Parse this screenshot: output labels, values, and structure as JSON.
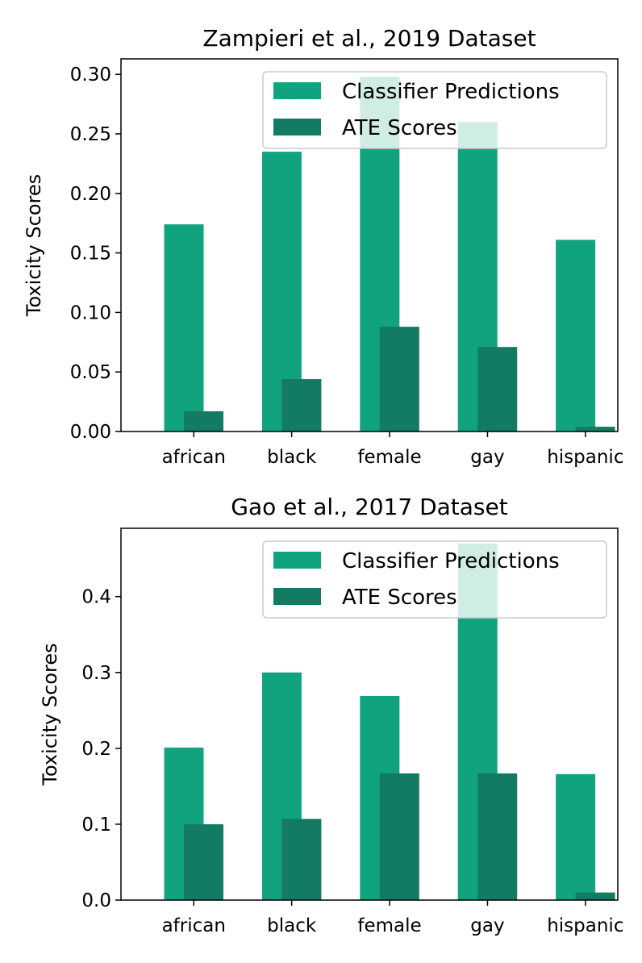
{
  "colors": {
    "classifier": "#11a37f",
    "ate": "#137a63"
  },
  "chart_data": [
    {
      "type": "bar",
      "title": "Zampieri et al., 2019 Dataset",
      "xlabel": "",
      "ylabel": "Toxicity Scores",
      "categories": [
        "african",
        "black",
        "female",
        "gay",
        "hispanic"
      ],
      "ylim": [
        0,
        0.313
      ],
      "yticks": [
        0.0,
        0.05,
        0.1,
        0.15,
        0.2,
        0.25,
        0.3
      ],
      "ytick_labels": [
        "0.00",
        "0.05",
        "0.10",
        "0.15",
        "0.20",
        "0.25",
        "0.30"
      ],
      "legend": "top-right",
      "series": [
        {
          "name": "Classifier Predictions",
          "values": [
            0.174,
            0.235,
            0.298,
            0.26,
            0.161
          ]
        },
        {
          "name": "ATE Scores",
          "values": [
            0.017,
            0.044,
            0.088,
            0.071,
            0.004
          ]
        }
      ]
    },
    {
      "type": "bar",
      "title": "Gao et al., 2017 Dataset",
      "xlabel": "",
      "ylabel": "Toxicity Scores",
      "categories": [
        "african",
        "black",
        "female",
        "gay",
        "hispanic"
      ],
      "ylim": [
        0,
        0.49
      ],
      "yticks": [
        0.0,
        0.1,
        0.2,
        0.3,
        0.4
      ],
      "ytick_labels": [
        "0.0",
        "0.1",
        "0.2",
        "0.3",
        "0.4"
      ],
      "legend": "top-right",
      "series": [
        {
          "name": "Classifier Predictions",
          "values": [
            0.201,
            0.3,
            0.269,
            0.47,
            0.166
          ]
        },
        {
          "name": "ATE Scores",
          "values": [
            0.1,
            0.107,
            0.167,
            0.167,
            0.01
          ]
        }
      ]
    }
  ]
}
